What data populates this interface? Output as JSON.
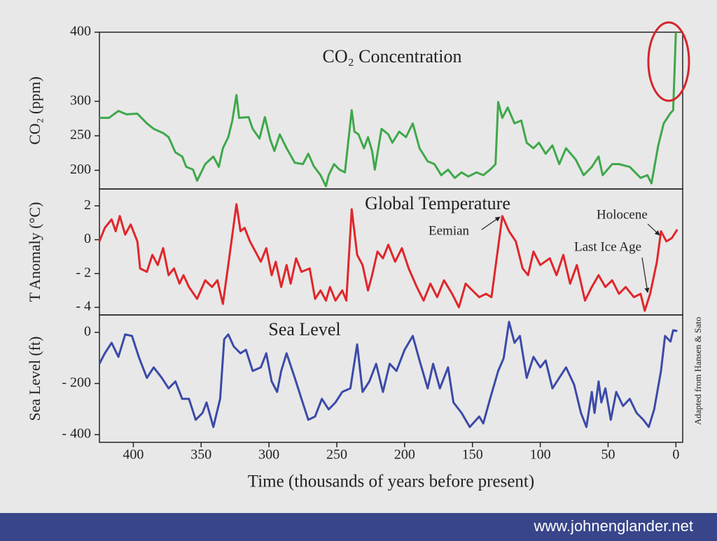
{
  "chart_data": [
    {
      "type": "line",
      "title": "CO₂ Concentration",
      "y_label": "CO₂ (ppm)",
      "color": "#3fa84a",
      "xlim": [
        425,
        -5
      ],
      "ylim": [
        173,
        400
      ],
      "yticks": [
        200,
        250,
        300,
        400
      ],
      "x": [
        425,
        418,
        411,
        405,
        397,
        390,
        385,
        378,
        374,
        369,
        364,
        361,
        356,
        353,
        347,
        341,
        337,
        334,
        330,
        327,
        324,
        322,
        315,
        312,
        307,
        303,
        299,
        296,
        292,
        287,
        281,
        275,
        271,
        267,
        262,
        258,
        256,
        252,
        248,
        244,
        239,
        237,
        234,
        230,
        227,
        224,
        222,
        217,
        212,
        209,
        204,
        199,
        194,
        189,
        183,
        178,
        173,
        168,
        163,
        158,
        153,
        147,
        142,
        137,
        133,
        131,
        128,
        124,
        119,
        114,
        110,
        105,
        101,
        96,
        91,
        86,
        81,
        74,
        68,
        62,
        57,
        54,
        47,
        42,
        34,
        26,
        21,
        18,
        13,
        9,
        4,
        2,
        0
      ],
      "values": [
        276,
        276,
        286,
        281,
        282,
        268,
        260,
        254,
        248,
        226,
        220,
        205,
        201,
        185,
        209,
        220,
        205,
        232,
        248,
        272,
        309,
        276,
        277,
        260,
        246,
        277,
        244,
        228,
        252,
        232,
        211,
        209,
        224,
        206,
        193,
        177,
        193,
        209,
        201,
        197,
        287,
        256,
        252,
        232,
        248,
        228,
        201,
        260,
        252,
        240,
        256,
        248,
        268,
        232,
        213,
        209,
        193,
        201,
        189,
        197,
        191,
        197,
        193,
        201,
        209,
        299,
        276,
        291,
        268,
        272,
        240,
        232,
        240,
        224,
        236,
        209,
        232,
        216,
        193,
        205,
        220,
        193,
        209,
        209,
        205,
        189,
        193,
        181,
        236,
        268,
        283,
        287,
        400
      ]
    },
    {
      "type": "line",
      "title": "Global Temperature",
      "y_label": "T Anomaly (°C)",
      "color": "#e0262b",
      "xlim": [
        425,
        -5
      ],
      "ylim": [
        -4.45,
        3
      ],
      "yticks": [
        2,
        0,
        {
          "value": -2,
          "label": "- 2"
        },
        {
          "value": -4,
          "label": "- 4"
        }
      ],
      "annotations": [
        "Eemian",
        "Holocene",
        "Last Ice Age"
      ],
      "x": [
        425,
        421,
        416,
        413,
        410,
        406,
        402,
        397,
        395,
        390,
        386,
        382,
        378,
        374,
        370,
        366,
        363,
        359,
        353,
        347,
        342,
        338,
        334,
        330,
        324,
        321,
        318,
        314,
        310,
        306,
        302,
        298,
        295,
        291,
        287,
        284,
        280,
        276,
        270,
        266,
        262,
        258,
        255,
        251,
        246,
        243,
        239,
        235,
        231,
        227,
        224,
        220,
        216,
        212,
        207,
        202,
        197,
        191,
        186,
        181,
        176,
        171,
        165,
        160,
        155,
        150,
        145,
        140,
        136,
        128,
        123,
        118,
        113,
        109,
        105,
        100,
        93,
        88,
        83,
        78,
        73,
        67,
        62,
        57,
        52,
        47,
        42,
        37,
        31,
        26,
        23,
        19,
        14,
        11,
        7,
        3,
        -1
      ],
      "values": [
        -0.1,
        0.7,
        1.2,
        0.5,
        1.4,
        0.3,
        0.9,
        -0.1,
        -1.7,
        -1.9,
        -0.9,
        -1.5,
        -0.5,
        -2.1,
        -1.7,
        -2.6,
        -2.1,
        -2.8,
        -3.5,
        -2.4,
        -2.8,
        -2.4,
        -3.8,
        -1.5,
        2.1,
        0.5,
        0.7,
        -0.1,
        -0.7,
        -1.3,
        -0.5,
        -2.1,
        -1.3,
        -2.8,
        -1.5,
        -2.6,
        -1.1,
        -1.9,
        -1.7,
        -3.5,
        -3.0,
        -3.6,
        -2.8,
        -3.6,
        -3.0,
        -3.6,
        1.8,
        -0.9,
        -1.5,
        -3.0,
        -2.1,
        -0.7,
        -1.1,
        -0.3,
        -1.3,
        -0.5,
        -1.7,
        -2.8,
        -3.6,
        -2.6,
        -3.4,
        -2.4,
        -3.2,
        -4.0,
        -2.6,
        -3.0,
        -3.4,
        -3.2,
        -3.4,
        1.4,
        0.5,
        -0.1,
        -1.7,
        -2.1,
        -0.7,
        -1.5,
        -1.1,
        -2.1,
        -0.9,
        -2.6,
        -1.5,
        -3.6,
        -2.8,
        -2.1,
        -2.8,
        -2.4,
        -3.2,
        -2.8,
        -3.4,
        -3.2,
        -4.2,
        -3.2,
        -1.3,
        0.5,
        -0.1,
        0.1,
        0.6
      ]
    },
    {
      "type": "line",
      "title": "Sea Level",
      "y_label": "Sea Level (ft)",
      "color": "#3b4aa8",
      "xlim": [
        425,
        -5
      ],
      "ylim": [
        -430,
        68
      ],
      "yticks": [
        0,
        {
          "value": -200,
          "label": "- 200"
        },
        {
          "value": -400,
          "label": "- 400"
        }
      ],
      "xticks": [
        400,
        350,
        300,
        250,
        200,
        150,
        100,
        50,
        0
      ],
      "x_label": "Time (thousands of years before present)",
      "x": [
        425,
        421,
        416,
        411,
        406,
        401,
        396,
        390,
        385,
        379,
        374,
        369,
        364,
        359,
        354,
        349,
        346,
        341,
        336,
        333,
        330,
        326,
        321,
        317,
        312,
        306,
        302,
        298,
        294,
        291,
        287,
        281,
        276,
        271,
        266,
        261,
        256,
        251,
        246,
        240,
        235,
        231,
        226,
        221,
        216,
        211,
        206,
        200,
        194,
        189,
        183,
        179,
        174,
        168,
        164,
        158,
        152,
        145,
        142,
        137,
        131,
        127,
        123,
        119,
        115,
        110,
        105,
        100,
        96,
        91,
        86,
        81,
        75,
        70,
        66,
        62,
        60,
        57,
        55,
        52,
        48,
        44,
        39,
        34,
        29,
        24,
        20,
        16,
        11,
        8,
        4,
        2,
        -1
      ],
      "values": [
        -123,
        -82,
        -41,
        -96,
        -8,
        -14,
        -96,
        -178,
        -137,
        -178,
        -219,
        -192,
        -260,
        -260,
        -342,
        -315,
        -274,
        -370,
        -260,
        -27,
        -8,
        -55,
        -82,
        -68,
        -151,
        -137,
        -82,
        -192,
        -233,
        -151,
        -82,
        -178,
        -260,
        -342,
        -329,
        -260,
        -301,
        -274,
        -233,
        -219,
        -47,
        -233,
        -192,
        -123,
        -233,
        -123,
        -151,
        -68,
        -14,
        -110,
        -219,
        -123,
        -219,
        -137,
        -274,
        -315,
        -370,
        -329,
        -356,
        -260,
        -151,
        -101,
        41,
        -41,
        -14,
        -178,
        -96,
        -137,
        -110,
        -219,
        -178,
        -137,
        -205,
        -315,
        -370,
        -233,
        -315,
        -192,
        -274,
        -219,
        -342,
        -233,
        -288,
        -260,
        -315,
        -342,
        -370,
        -301,
        -151,
        -14,
        -36,
        8,
        5
      ]
    }
  ],
  "credit": "Adapted from Hansen & Sato",
  "footer": "www.johnenglander.net"
}
